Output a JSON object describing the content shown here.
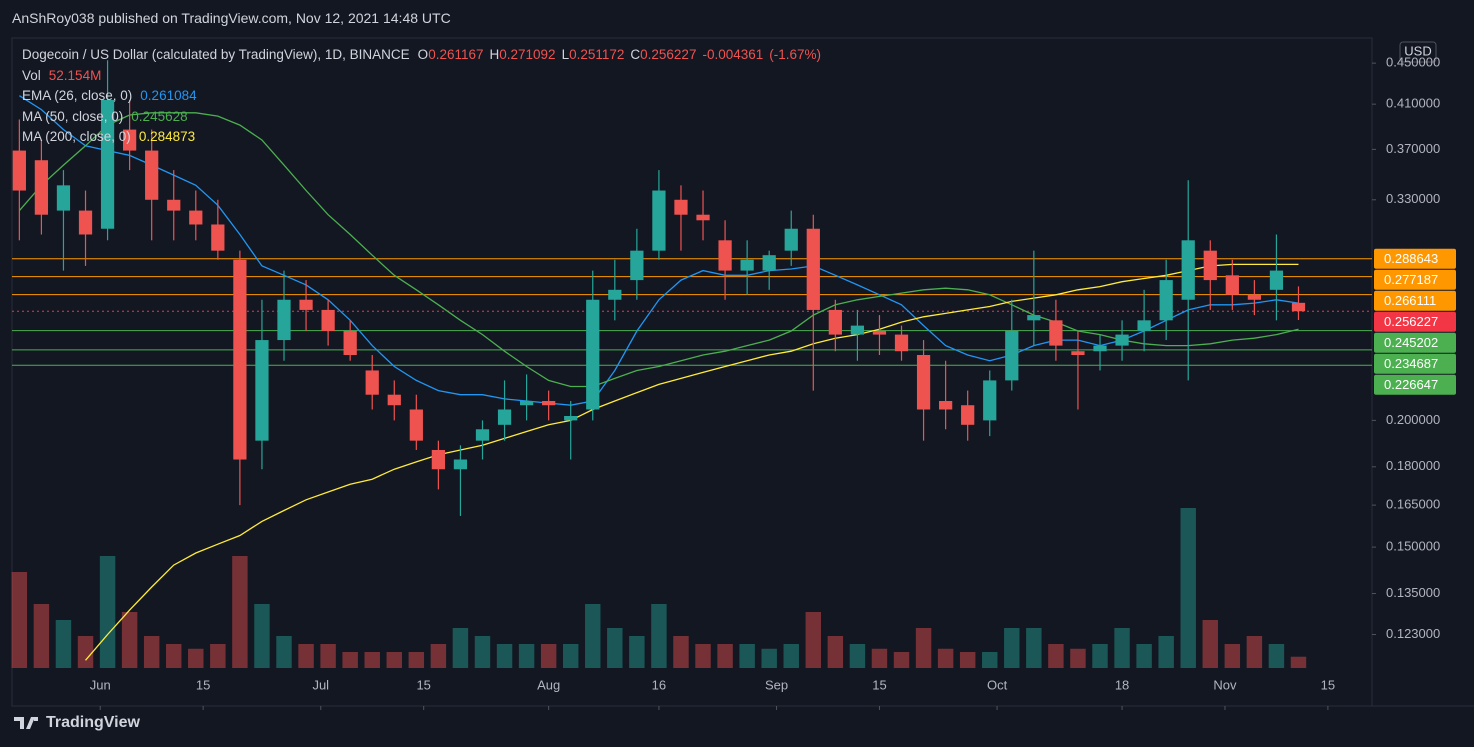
{
  "header": {
    "byline": "AnShRoy038 published on TradingView.com, Nov 12, 2021 14:48 UTC",
    "brand": "TradingView"
  },
  "chart_data": {
    "type": "candlestick",
    "title": "Dogecoin / US Dollar (calculated by TradingView), 1D, BINANCE",
    "currency": "USD",
    "ohlc_legend": [
      {
        "label": "O",
        "value": 0.261167
      },
      {
        "label": "H",
        "value": 0.271092
      },
      {
        "label": "L",
        "value": 0.251172
      },
      {
        "label": "C",
        "value": 0.256227
      }
    ],
    "change": -0.004361,
    "change_pct": {
      "value": -1.67,
      "label": "(-1.67%)"
    },
    "x": [
      1,
      4,
      7,
      10,
      13,
      16,
      19,
      22,
      25,
      28,
      31,
      34,
      37,
      40,
      43,
      46,
      49,
      52,
      55,
      58,
      61,
      64,
      67,
      70,
      73,
      76,
      79,
      82,
      85,
      88,
      91,
      94,
      97,
      100,
      103,
      106,
      109,
      112,
      115,
      118,
      121,
      124,
      127,
      130,
      133,
      136,
      139,
      142,
      145,
      148,
      151,
      154,
      157,
      160,
      163,
      166,
      169,
      172,
      175
    ],
    "xlim": [
      0,
      185
    ],
    "xticks": [
      {
        "value": 12,
        "label": "Jun"
      },
      {
        "value": 26,
        "label": "15"
      },
      {
        "value": 42,
        "label": "Jul"
      },
      {
        "value": 56,
        "label": "15"
      },
      {
        "value": 73,
        "label": "Aug"
      },
      {
        "value": 88,
        "label": "16"
      },
      {
        "value": 104,
        "label": "Sep"
      },
      {
        "value": 118,
        "label": "15"
      },
      {
        "value": 134,
        "label": "Oct"
      },
      {
        "value": 151,
        "label": "18"
      },
      {
        "value": 165,
        "label": "Nov"
      },
      {
        "value": 179,
        "label": "15"
      }
    ],
    "ylim": [
      0.114,
      0.47
    ],
    "log_scale": true,
    "yticks": [
      {
        "value": 0.123,
        "label": "0.123000"
      },
      {
        "value": 0.135,
        "label": "0.135000"
      },
      {
        "value": 0.15,
        "label": "0.150000"
      },
      {
        "value": 0.165,
        "label": "0.165000"
      },
      {
        "value": 0.18,
        "label": "0.180000"
      },
      {
        "value": 0.2,
        "label": "0.200000"
      },
      {
        "value": 0.33,
        "label": "0.330000"
      },
      {
        "value": 0.37,
        "label": "0.370000"
      },
      {
        "value": 0.41,
        "label": "0.410000"
      },
      {
        "value": 0.45,
        "label": "0.450000"
      }
    ],
    "open": [
      0.369,
      0.361,
      0.322,
      0.322,
      0.309,
      0.387,
      0.369,
      0.33,
      0.322,
      0.312,
      0.288,
      0.191,
      0.24,
      0.263,
      0.257,
      0.245,
      0.224,
      0.212,
      0.205,
      0.187,
      0.179,
      0.191,
      0.198,
      0.207,
      0.209,
      0.2,
      0.205,
      0.263,
      0.275,
      0.294,
      0.33,
      0.319,
      0.301,
      0.281,
      0.281,
      0.294,
      0.309,
      0.257,
      0.243,
      0.245,
      0.243,
      0.232,
      0.209,
      0.207,
      0.2,
      0.219,
      0.251,
      0.251,
      0.234,
      0.234,
      0.237,
      0.245,
      0.251,
      0.263,
      0.294,
      0.278,
      0.266,
      0.269,
      0.261167
    ],
    "high": [
      0.396,
      0.378,
      0.353,
      0.337,
      0.453,
      0.414,
      0.387,
      0.353,
      0.337,
      0.33,
      0.294,
      0.263,
      0.281,
      0.275,
      0.263,
      0.251,
      0.232,
      0.219,
      0.212,
      0.191,
      0.189,
      0.2,
      0.219,
      0.222,
      0.214,
      0.209,
      0.281,
      0.288,
      0.309,
      0.353,
      0.341,
      0.337,
      0.315,
      0.301,
      0.294,
      0.322,
      0.319,
      0.263,
      0.257,
      0.254,
      0.248,
      0.24,
      0.229,
      0.214,
      0.224,
      0.263,
      0.294,
      0.263,
      0.245,
      0.243,
      0.251,
      0.269,
      0.288,
      0.345,
      0.301,
      0.288,
      0.275,
      0.305,
      0.271092
    ],
    "low": [
      0.301,
      0.305,
      0.281,
      0.284,
      0.301,
      0.353,
      0.301,
      0.301,
      0.301,
      0.288,
      0.165,
      0.179,
      0.229,
      0.245,
      0.237,
      0.229,
      0.205,
      0.2,
      0.187,
      0.171,
      0.161,
      0.183,
      0.191,
      0.2,
      0.2,
      0.183,
      0.2,
      0.251,
      0.263,
      0.288,
      0.294,
      0.301,
      0.263,
      0.266,
      0.269,
      0.284,
      0.214,
      0.234,
      0.229,
      0.232,
      0.229,
      0.191,
      0.196,
      0.191,
      0.193,
      0.214,
      0.237,
      0.229,
      0.205,
      0.224,
      0.229,
      0.234,
      0.24,
      0.219,
      0.257,
      0.257,
      0.254,
      0.251,
      0.251172
    ],
    "close": [
      0.337,
      0.319,
      0.341,
      0.305,
      0.414,
      0.369,
      0.33,
      0.322,
      0.312,
      0.294,
      0.183,
      0.24,
      0.263,
      0.257,
      0.245,
      0.232,
      0.212,
      0.207,
      0.191,
      0.179,
      0.183,
      0.196,
      0.205,
      0.209,
      0.207,
      0.202,
      0.263,
      0.269,
      0.294,
      0.337,
      0.319,
      0.315,
      0.281,
      0.288,
      0.291,
      0.309,
      0.257,
      0.243,
      0.248,
      0.243,
      0.234,
      0.205,
      0.205,
      0.198,
      0.219,
      0.245,
      0.254,
      0.237,
      0.232,
      0.237,
      0.243,
      0.251,
      0.275,
      0.301,
      0.275,
      0.266,
      0.263,
      0.281,
      0.256227
    ],
    "up_color": "#26a69a",
    "down_color": "#ef5350",
    "volume": {
      "name": "Vol",
      "value_label": "52.154M",
      "values": [
        444,
        296,
        222,
        148,
        518,
        259,
        148,
        111,
        89,
        111,
        518,
        296,
        148,
        111,
        111,
        74,
        74,
        74,
        74,
        111,
        185,
        148,
        111,
        111,
        111,
        111,
        296,
        185,
        148,
        296,
        148,
        111,
        111,
        111,
        89,
        111,
        259,
        148,
        111,
        89,
        74,
        185,
        89,
        74,
        74,
        185,
        185,
        111,
        89,
        111,
        185,
        111,
        148,
        740,
        222,
        111,
        148,
        111,
        52.154
      ]
    },
    "series": [
      {
        "name": "EMA (26, close, 0)",
        "color": "#2196f3",
        "legend_value": 0.261084,
        "values": [
          0.418,
          0.405,
          0.387,
          0.373,
          0.369,
          0.365,
          0.357,
          0.349,
          0.341,
          0.326,
          0.305,
          0.284,
          0.278,
          0.272,
          0.263,
          0.251,
          0.237,
          0.226,
          0.219,
          0.214,
          0.212,
          0.212,
          0.21,
          0.209,
          0.208,
          0.207,
          0.209,
          0.224,
          0.245,
          0.263,
          0.275,
          0.281,
          0.278,
          0.278,
          0.281,
          0.282,
          0.284,
          0.278,
          0.272,
          0.266,
          0.26,
          0.248,
          0.237,
          0.232,
          0.229,
          0.232,
          0.237,
          0.24,
          0.24,
          0.237,
          0.24,
          0.245,
          0.251,
          0.257,
          0.26,
          0.26,
          0.261,
          0.263,
          0.261
        ]
      },
      {
        "name": "MA (50, close, 0)",
        "color": "#4caf50",
        "legend_value": 0.245628,
        "values": [
          0.322,
          0.341,
          0.357,
          0.373,
          0.391,
          0.4,
          0.402,
          0.402,
          0.402,
          0.399,
          0.391,
          0.378,
          0.357,
          0.337,
          0.319,
          0.305,
          0.291,
          0.278,
          0.269,
          0.26,
          0.251,
          0.243,
          0.234,
          0.226,
          0.219,
          0.216,
          0.216,
          0.22,
          0.224,
          0.226,
          0.229,
          0.232,
          0.234,
          0.237,
          0.24,
          0.245,
          0.254,
          0.26,
          0.263,
          0.265,
          0.267,
          0.269,
          0.27,
          0.269,
          0.266,
          0.26,
          0.254,
          0.25,
          0.245,
          0.243,
          0.24,
          0.238,
          0.237,
          0.237,
          0.238,
          0.24,
          0.241,
          0.243,
          0.246
        ]
      },
      {
        "name": "MA (200, close, 0)",
        "color": "#ffeb3b",
        "legend_value": 0.284873,
        "values": [
          null,
          null,
          null,
          0.116,
          0.123,
          0.13,
          0.137,
          0.144,
          0.148,
          0.151,
          0.154,
          0.159,
          0.163,
          0.167,
          0.17,
          0.173,
          0.175,
          0.179,
          0.182,
          0.185,
          0.187,
          0.189,
          0.192,
          0.195,
          0.198,
          0.2,
          0.205,
          0.209,
          0.213,
          0.217,
          0.22,
          0.223,
          0.226,
          0.229,
          0.232,
          0.234,
          0.238,
          0.241,
          0.243,
          0.246,
          0.25,
          0.253,
          0.255,
          0.257,
          0.259,
          0.262,
          0.264,
          0.266,
          0.269,
          0.271,
          0.274,
          0.276,
          0.278,
          0.281,
          0.284,
          0.285,
          0.285,
          0.285,
          0.285
        ]
      }
    ],
    "levels": [
      {
        "value": 0.288643,
        "color": "#ff9800"
      },
      {
        "value": 0.277187,
        "color": "#ff9800"
      },
      {
        "value": 0.266111,
        "color": "#ff9800"
      },
      {
        "value": 0.256227,
        "color": "#f23645",
        "style": "dotted"
      },
      {
        "value": 0.245202,
        "color": "#4caf50"
      },
      {
        "value": 0.234687,
        "color": "#4caf50"
      },
      {
        "value": 0.226647,
        "color": "#4caf50"
      }
    ]
  }
}
